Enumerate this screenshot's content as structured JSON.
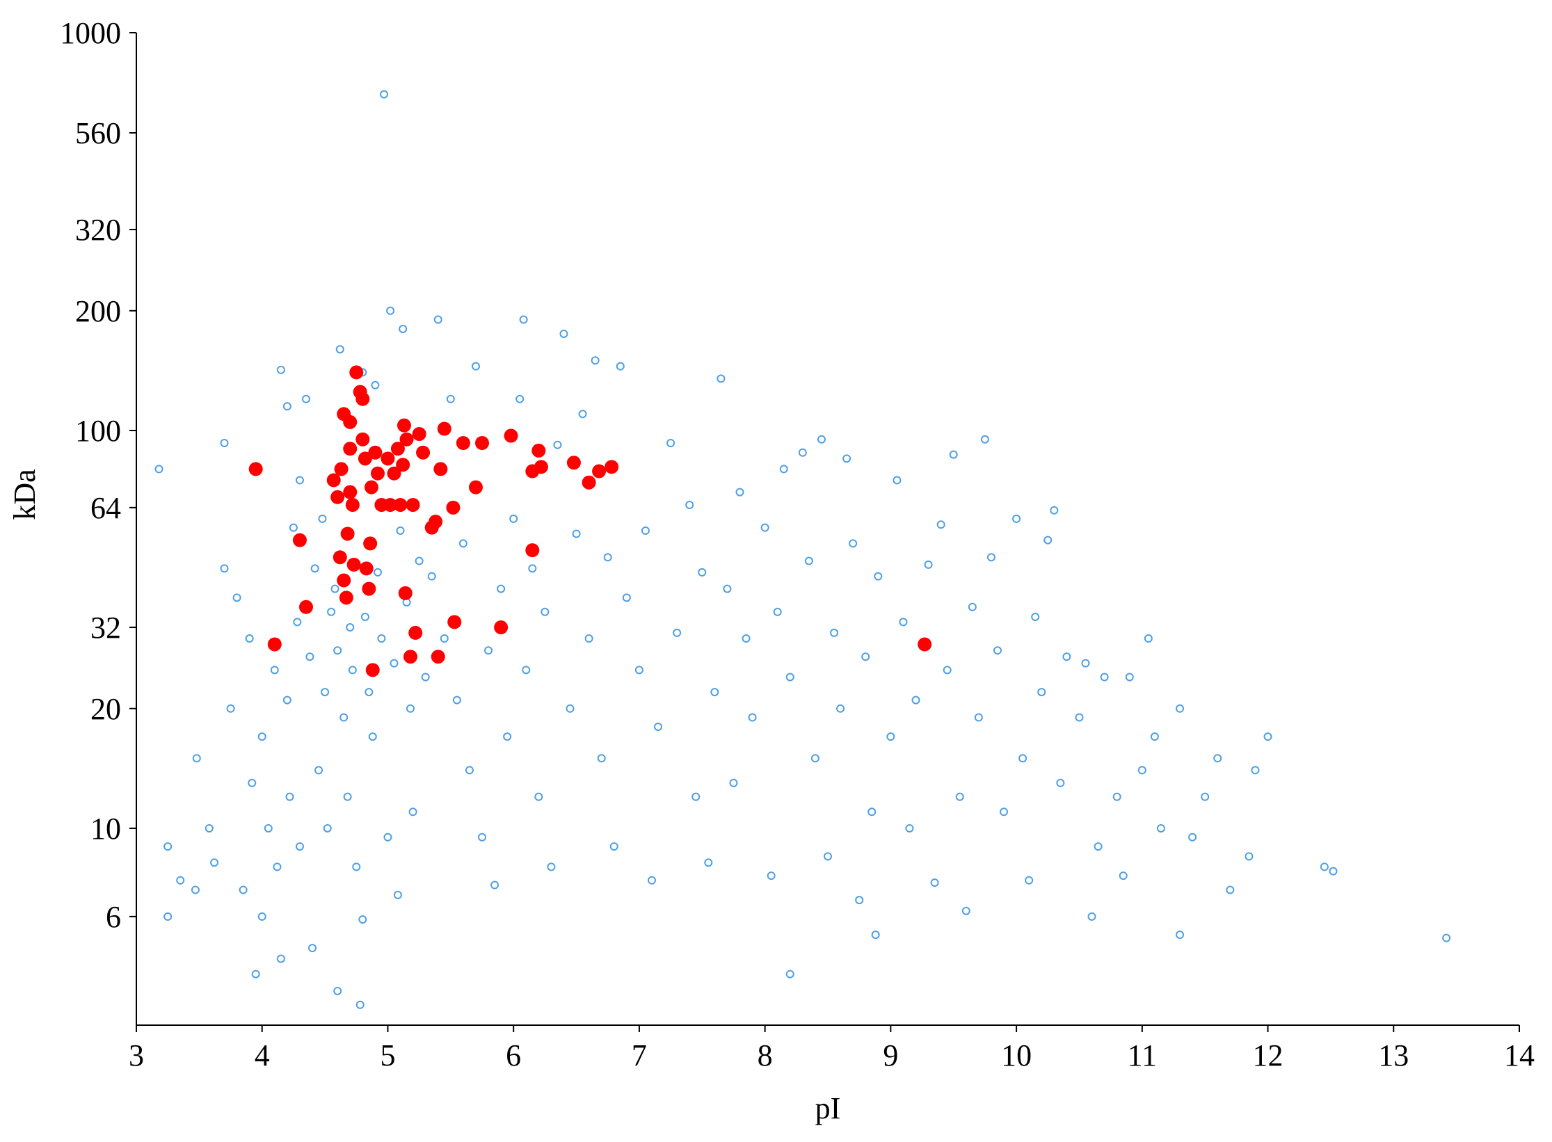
{
  "chart_data": {
    "type": "scatter",
    "x_label": "pI",
    "y_label": "kDa",
    "xlim": [
      3,
      14
    ],
    "xticks": [
      3,
      4,
      5,
      6,
      7,
      8,
      9,
      10,
      11,
      12,
      13,
      14
    ],
    "ylim": [
      3.2,
      1000
    ],
    "yticks": [
      6,
      10,
      20,
      32,
      64,
      100,
      200,
      320,
      560,
      1000
    ],
    "y_scale": "log",
    "series": [
      {
        "color": "#4d9fe8",
        "marker": "hollow",
        "x": [
          3.18,
          3.25,
          3.25,
          3.35,
          3.47,
          3.48,
          3.58,
          3.62,
          3.7,
          3.7,
          3.75,
          3.8,
          3.85,
          3.9,
          3.92,
          3.95,
          4.0,
          4.0,
          4.05,
          4.1,
          4.12,
          4.15,
          4.15,
          4.2,
          4.2,
          4.22,
          4.25,
          4.28,
          4.3,
          4.3,
          4.35,
          4.38,
          4.4,
          4.42,
          4.45,
          4.48,
          4.5,
          4.52,
          4.55,
          4.58,
          4.6,
          4.6,
          4.62,
          4.65,
          4.68,
          4.7,
          4.72,
          4.75,
          4.78,
          4.8,
          4.8,
          4.82,
          4.85,
          4.88,
          4.9,
          4.92,
          4.95,
          4.97,
          5.0,
          5.02,
          5.05,
          5.08,
          5.1,
          5.12,
          5.15,
          5.18,
          5.2,
          5.25,
          5.3,
          5.35,
          5.4,
          5.45,
          5.5,
          5.55,
          5.6,
          5.65,
          5.7,
          5.75,
          5.8,
          5.85,
          5.9,
          5.95,
          6.0,
          6.05,
          6.08,
          6.1,
          6.15,
          6.2,
          6.25,
          6.3,
          6.35,
          6.4,
          6.45,
          6.5,
          6.55,
          6.6,
          6.65,
          6.7,
          6.75,
          6.8,
          6.85,
          6.9,
          7.0,
          7.05,
          7.1,
          7.15,
          7.25,
          7.3,
          7.4,
          7.45,
          7.5,
          7.55,
          7.6,
          7.65,
          7.7,
          7.75,
          7.8,
          7.85,
          7.9,
          8.0,
          8.05,
          8.1,
          8.15,
          8.2,
          8.2,
          8.3,
          8.35,
          8.4,
          8.45,
          8.5,
          8.55,
          8.6,
          8.65,
          8.7,
          8.75,
          8.8,
          8.85,
          8.88,
          8.9,
          9.0,
          9.05,
          9.1,
          9.15,
          9.2,
          9.3,
          9.35,
          9.4,
          9.45,
          9.5,
          9.55,
          9.6,
          9.65,
          9.7,
          9.75,
          9.8,
          9.85,
          9.9,
          10.0,
          10.05,
          10.1,
          10.15,
          10.2,
          10.25,
          10.3,
          10.35,
          10.4,
          10.5,
          10.55,
          10.6,
          10.65,
          10.7,
          10.8,
          10.85,
          10.9,
          11.0,
          11.05,
          11.1,
          11.15,
          11.3,
          11.3,
          11.4,
          11.5,
          11.6,
          11.7,
          11.85,
          11.9,
          12.0,
          12.45,
          12.52,
          13.42
        ],
        "values": [
          80,
          9,
          6,
          7.4,
          7,
          15,
          10,
          8.2,
          93,
          45,
          20,
          38,
          7,
          30,
          13,
          4.3,
          17,
          6,
          10,
          25,
          8,
          142,
          4.7,
          115,
          21,
          12,
          57,
          33,
          75,
          9,
          120,
          27,
          5,
          45,
          14,
          60,
          22,
          10,
          35,
          40,
          28,
          3.9,
          160,
          19,
          12,
          32,
          25,
          8,
          3.6,
          140,
          5.9,
          34,
          22,
          17,
          130,
          44,
          30,
          700,
          9.5,
          200,
          26,
          6.8,
          56,
          180,
          37,
          20,
          11,
          47,
          24,
          43,
          190,
          30,
          120,
          21,
          52,
          14,
          145,
          9.5,
          28,
          7.2,
          40,
          17,
          60,
          120,
          190,
          25,
          45,
          12,
          35,
          8,
          92,
          175,
          20,
          55,
          110,
          30,
          150,
          15,
          48,
          9,
          145,
          38,
          25,
          56,
          7.4,
          18,
          93,
          31,
          65,
          12,
          44,
          8.2,
          22,
          135,
          40,
          13,
          70,
          30,
          19,
          57,
          7.6,
          35,
          80,
          4.3,
          24,
          88,
          47,
          15,
          95,
          8.5,
          31,
          20,
          85,
          52,
          6.6,
          27,
          11,
          5.4,
          43,
          17,
          75,
          33,
          10,
          21,
          46,
          7.3,
          58,
          25,
          87,
          12,
          6.2,
          36,
          19,
          95,
          48,
          28,
          11,
          60,
          15,
          7.4,
          34,
          22,
          53,
          63,
          13,
          27,
          19,
          26,
          6,
          9,
          24,
          12,
          7.6,
          24,
          14,
          30,
          17,
          10,
          20,
          5.4,
          9.5,
          12,
          15,
          7,
          8.5,
          14,
          17,
          8,
          7.8,
          5.3
        ]
      },
      {
        "color": "#ff0000",
        "marker": "filled",
        "x": [
          3.95,
          4.1,
          4.3,
          4.35,
          4.57,
          4.6,
          4.62,
          4.63,
          4.65,
          4.67,
          4.68,
          4.7,
          4.7,
          4.72,
          4.73,
          4.75,
          4.78,
          4.8,
          4.8,
          4.82,
          4.83,
          4.85,
          4.86,
          4.87,
          4.88,
          4.9,
          4.92,
          4.95,
          5.0,
          5.02,
          5.05,
          5.08,
          5.1,
          5.12,
          5.13,
          5.14,
          5.15,
          5.18,
          5.2,
          5.22,
          5.25,
          5.28,
          5.35,
          5.38,
          5.4,
          5.42,
          5.45,
          5.52,
          5.53,
          5.6,
          5.7,
          5.75,
          5.9,
          5.98,
          6.15,
          6.15,
          6.2,
          6.22,
          6.48,
          6.6,
          6.68,
          6.78,
          9.27,
          4.65,
          4.7
        ],
        "values": [
          80,
          29,
          53,
          36,
          75,
          68,
          48,
          80,
          42,
          38,
          55,
          105,
          70,
          65,
          46,
          140,
          125,
          120,
          95,
          85,
          45,
          40,
          52,
          72,
          25,
          88,
          78,
          65,
          85,
          65,
          78,
          90,
          65,
          82,
          103,
          39,
          95,
          27,
          65,
          31,
          98,
          88,
          57,
          59,
          27,
          80,
          101,
          64,
          33,
          93,
          72,
          93,
          32,
          97,
          50,
          79,
          89,
          81,
          83,
          74,
          79,
          81,
          29,
          110,
          90
        ]
      }
    ]
  }
}
